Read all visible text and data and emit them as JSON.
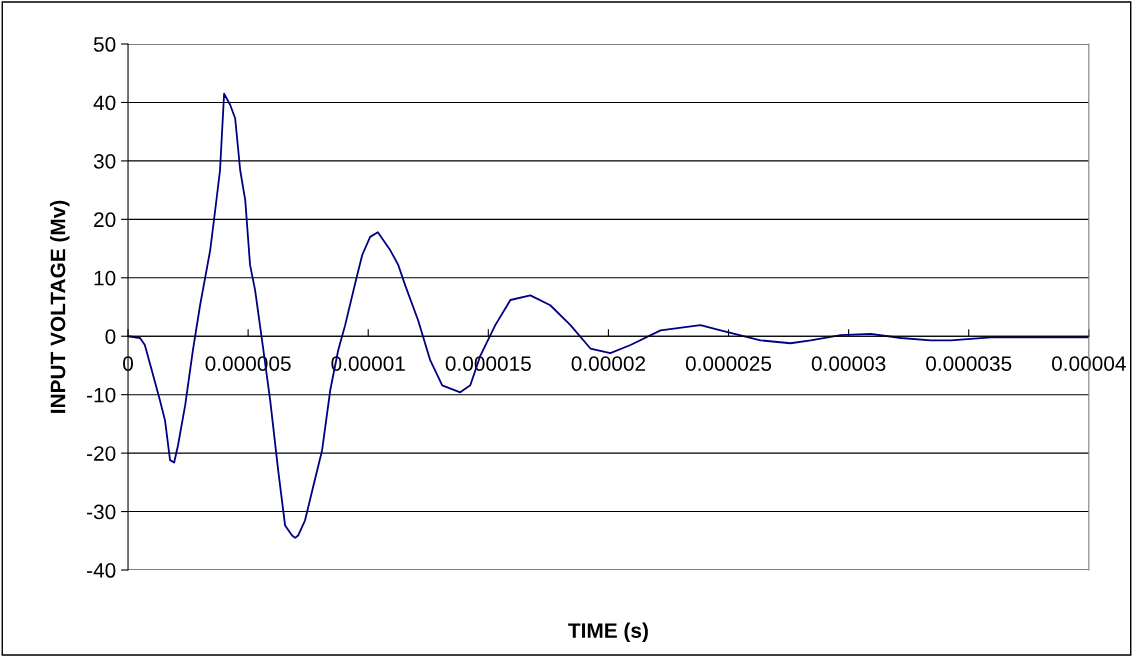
{
  "chart_data": {
    "type": "line",
    "xlabel": "TIME (s)",
    "ylabel": "INPUT VOLTAGE (Mv)",
    "x": [
      0,
      5e-07,
      7e-07,
      1e-06,
      1.33e-06,
      1.54e-06,
      1.75e-06,
      1.92e-06,
      2.08e-06,
      2.38e-06,
      2.7e-06,
      3e-06,
      3.42e-06,
      3.63e-06,
      3.83e-06,
      4e-06,
      4.25e-06,
      4.46e-06,
      4.67e-06,
      4.88e-06,
      5.08e-06,
      5.29e-06,
      5.58e-06,
      5.92e-06,
      6.25e-06,
      6.54e-06,
      6.83e-06,
      6.96e-06,
      7.08e-06,
      7.37e-06,
      7.67e-06,
      8.08e-06,
      8.42e-06,
      8.75e-06,
      9.04e-06,
      9.46e-06,
      9.75e-06,
      1.008e-05,
      1.04e-05,
      1.092e-05,
      1.125e-05,
      1.154e-05,
      1.208e-05,
      1.258e-05,
      1.308e-05,
      1.383e-05,
      1.425e-05,
      1.467e-05,
      1.529e-05,
      1.592e-05,
      1.675e-05,
      1.758e-05,
      1.842e-05,
      1.925e-05,
      2.008e-05,
      2.092e-05,
      2.217e-05,
      2.383e-05,
      2.467e-05,
      2.633e-05,
      2.758e-05,
      2.842e-05,
      2.967e-05,
      3.092e-05,
      3.217e-05,
      3.342e-05,
      3.425e-05,
      3.592e-05,
      4e-05
    ],
    "series": [
      {
        "color": "#000080",
        "values": [
          0,
          -0.3,
          -1.5,
          -6,
          -11,
          -14.4,
          -21.2,
          -21.6,
          -18.7,
          -11.8,
          -2.4,
          5.3,
          14.7,
          21.6,
          28.4,
          41.5,
          39.6,
          37.3,
          28.4,
          23.3,
          12.2,
          7.9,
          -0.7,
          -11,
          -22.9,
          -32.4,
          -34.1,
          -34.5,
          -34.1,
          -31.5,
          -26.4,
          -19.5,
          -9.2,
          -2.4,
          1.9,
          9.1,
          13.9,
          17,
          17.8,
          14.7,
          12.2,
          8.7,
          2.7,
          -4.1,
          -8.4,
          -9.6,
          -8.4,
          -3.3,
          1.9,
          6.2,
          7.0,
          5.3,
          1.9,
          -2.1,
          -2.9,
          -1.5,
          1.0,
          1.9,
          1.0,
          -0.7,
          -1.2,
          -0.7,
          0.2,
          0.4,
          -0.3,
          -0.7,
          -0.7,
          -0.2,
          -0.2
        ]
      }
    ],
    "xlim": [
      0,
      4e-05
    ],
    "ylim": [
      -40,
      50
    ],
    "xticks": [
      0,
      {
        "value": 5e-06,
        "label": "0.000005"
      },
      {
        "value": 1e-05,
        "label": "0.00001"
      },
      {
        "value": 1.5e-05,
        "label": "0.000015"
      },
      {
        "value": 2e-05,
        "label": "0.00002"
      },
      {
        "value": 2.5e-05,
        "label": "0.000025"
      },
      {
        "value": 3e-05,
        "label": "0.00003"
      },
      {
        "value": 3.5e-05,
        "label": "0.000035"
      },
      {
        "value": 4e-05,
        "label": "0.00004"
      }
    ],
    "yticks": [
      -40,
      -30,
      -20,
      -10,
      0,
      10,
      20,
      30,
      40,
      50
    ],
    "grid": "y",
    "marker": "none",
    "line_style": "solid"
  }
}
